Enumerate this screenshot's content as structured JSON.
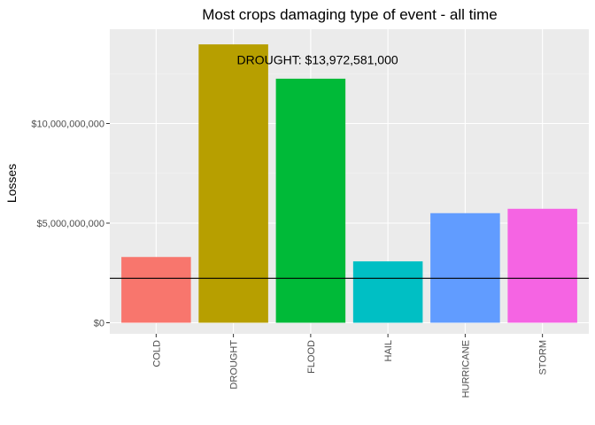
{
  "chart_data": {
    "type": "bar",
    "title": "Most crops damaging type of event - all time",
    "xlabel": "",
    "ylabel": "Losses",
    "categories": [
      "COLD",
      "DROUGHT",
      "FLOOD",
      "HAIL",
      "HURRICANE",
      "STORM"
    ],
    "values": [
      3300000000,
      13972581000,
      12250000000,
      3080000000,
      5500000000,
      5720000000
    ],
    "colors": [
      "#F8766D",
      "#B79F00",
      "#00BA38",
      "#00BFC4",
      "#619CFF",
      "#F564E3"
    ],
    "ylim": [
      0,
      14500000000
    ],
    "yticks": [
      0,
      5000000000,
      10000000000
    ],
    "ytick_labels": [
      "$0",
      "$5,000,000,000",
      "$10,000,000,000"
    ],
    "hline": 2230000000,
    "annotation": {
      "text": "DROUGHT: $13,972,581,000",
      "category": "DROUGHT",
      "y": 13200000000
    },
    "grid": true,
    "legend": "none"
  }
}
